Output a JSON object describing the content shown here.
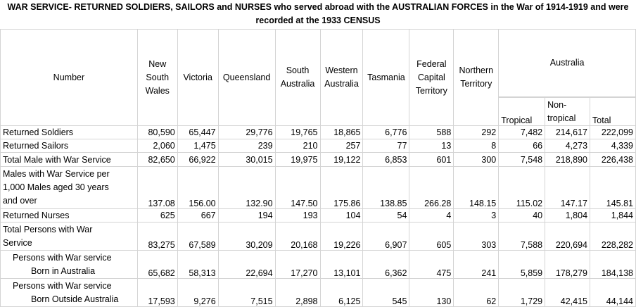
{
  "title": "WAR SERVICE- RETURNED SOLDIERS, SAILORS and NURSES who served abroad with the AUSTRALIAN FORCES in the War of 1914-1919 and were recorded at the 1933 CENSUS",
  "headers": {
    "number": "Number",
    "nsw_line1": "New",
    "nsw_line2": "South",
    "nsw_line3": "Wales",
    "vic": "Victoria",
    "qld": "Queensland",
    "sa_line1": "South",
    "sa_line2": "Australia",
    "wa_line1": "Western",
    "wa_line2": "Australia",
    "tas": "Tasmania",
    "fct_line1": "Federal",
    "fct_line2": "Capital",
    "fct_line3": "Territory",
    "nt_line1": "Northern",
    "nt_line2": "Territory",
    "australia": "Australia",
    "tropical": "Tropical",
    "nontropical_line1": "Non-",
    "nontropical_line2": "tropical",
    "total": "Total"
  },
  "rows": [
    {
      "label": "Returned Soldiers",
      "values": [
        "80,590",
        "65,447",
        "29,776",
        "19,765",
        "18,865",
        "6,776",
        "588",
        "292",
        "7,482",
        "214,617",
        "222,099"
      ]
    },
    {
      "label": "Returned Sailors",
      "values": [
        "2,060",
        "1,475",
        "239",
        "210",
        "257",
        "77",
        "13",
        "8",
        "66",
        "4,273",
        "4,339"
      ]
    },
    {
      "label": "Total Male with War Service",
      "values": [
        "82,650",
        "66,922",
        "30,015",
        "19,975",
        "19,122",
        "6,853",
        "601",
        "300",
        "7,548",
        "218,890",
        "226,438"
      ]
    },
    {
      "label_line1": "Males with War Service per",
      "label_line2": "1,000 Males aged 30 years",
      "label_line3": "and over",
      "values": [
        "137.08",
        "156.00",
        "132.90",
        "147.50",
        "175.86",
        "138.85",
        "266.28",
        "148.15",
        "115.02",
        "147.17",
        "145.81"
      ]
    },
    {
      "label": "Returned Nurses",
      "values": [
        "625",
        "667",
        "194",
        "193",
        "104",
        "54",
        "4",
        "3",
        "40",
        "1,804",
        "1,844"
      ]
    },
    {
      "label_line1": "Total Persons with War",
      "label_line2": "Service",
      "values": [
        "83,275",
        "67,589",
        "30,209",
        "20,168",
        "19,226",
        "6,907",
        "605",
        "303",
        "7,588",
        "220,694",
        "228,282"
      ]
    },
    {
      "label_line1": "Persons with War service",
      "label_line2": "Born in Australia",
      "values": [
        "65,682",
        "58,313",
        "22,694",
        "17,270",
        "13,101",
        "6,362",
        "475",
        "241",
        "5,859",
        "178,279",
        "184,138"
      ]
    },
    {
      "label_line1": "Persons with War service",
      "label_line2": "Born Outside Australia",
      "values": [
        "17,593",
        "9,276",
        "7,515",
        "2,898",
        "6,125",
        "545",
        "130",
        "62",
        "1,729",
        "42,415",
        "44,144"
      ]
    }
  ]
}
